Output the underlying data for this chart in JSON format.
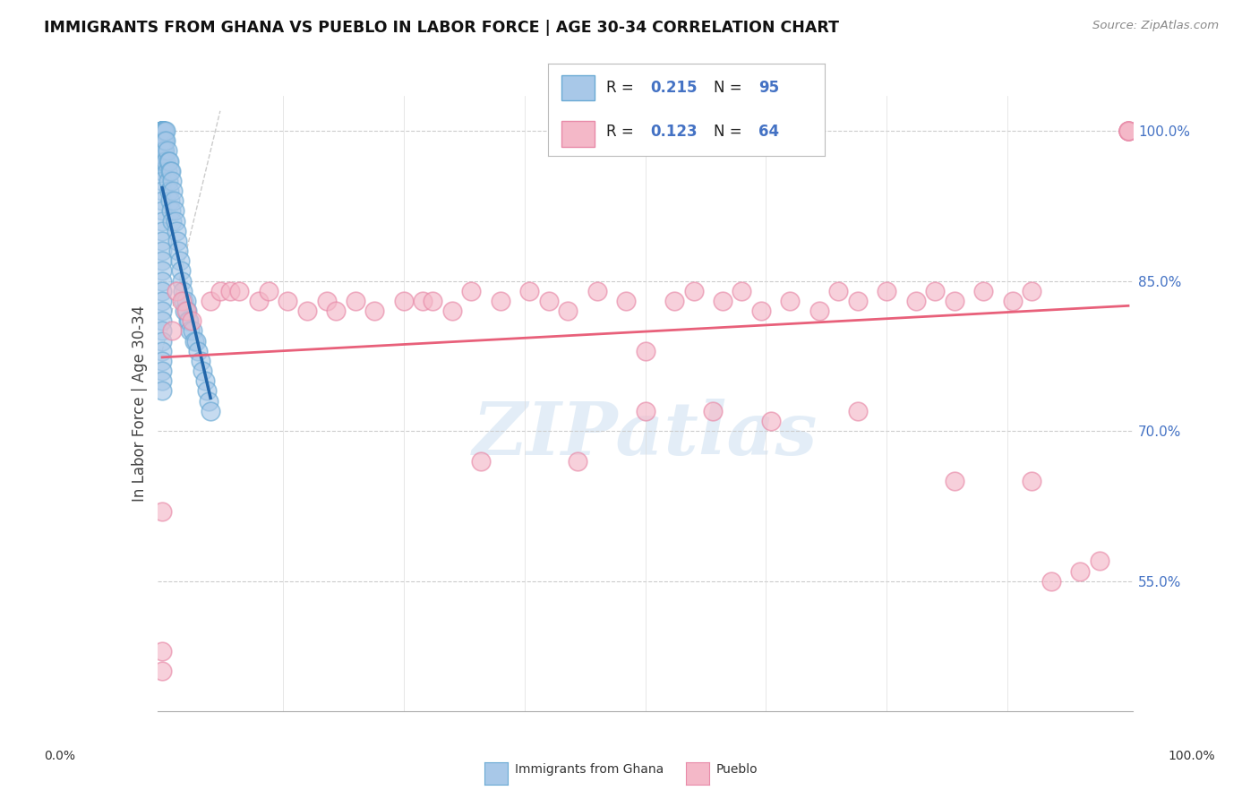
{
  "title": "IMMIGRANTS FROM GHANA VS PUEBLO IN LABOR FORCE | AGE 30-34 CORRELATION CHART",
  "source": "Source: ZipAtlas.com",
  "ylabel": "In Labor Force | Age 30-34",
  "legend_labels": [
    "Immigrants from Ghana",
    "Pueblo"
  ],
  "legend_R": [
    0.215,
    0.123
  ],
  "legend_N": [
    95,
    64
  ],
  "blue_color": "#a8c8e8",
  "blue_edge_color": "#6aaad4",
  "pink_color": "#f4b8c8",
  "pink_edge_color": "#e88aa8",
  "blue_line_color": "#2266aa",
  "pink_line_color": "#e8607a",
  "ref_line_color": "#cccccc",
  "ytick_color": "#4472c4",
  "ytick_labels": [
    "55.0%",
    "70.0%",
    "85.0%",
    "100.0%"
  ],
  "ytick_values": [
    0.55,
    0.7,
    0.85,
    1.0
  ],
  "xlim": [
    -0.005,
    1.005
  ],
  "ylim": [
    0.42,
    1.035
  ],
  "watermark_text": "ZIPatlas",
  "watermark_color": "#c8ddf0",
  "ghana_seed": 1234,
  "pueblo_seed": 5678,
  "ghana_n": 95,
  "pueblo_n": 64,
  "ghana_x_coords": [
    0.0,
    0.0,
    0.0,
    0.0,
    0.0,
    0.0,
    0.0,
    0.0,
    0.0,
    0.0,
    0.0,
    0.0,
    0.0,
    0.0,
    0.0,
    0.0,
    0.0,
    0.0,
    0.0,
    0.0,
    0.0,
    0.0,
    0.0,
    0.0,
    0.0,
    0.0,
    0.0,
    0.0,
    0.0,
    0.0,
    0.0,
    0.0,
    0.0,
    0.0,
    0.0,
    0.0,
    0.0,
    0.0,
    0.0,
    0.0,
    0.001,
    0.001,
    0.001,
    0.001,
    0.001,
    0.002,
    0.002,
    0.002,
    0.002,
    0.003,
    0.003,
    0.003,
    0.004,
    0.004,
    0.004,
    0.005,
    0.005,
    0.006,
    0.006,
    0.007,
    0.007,
    0.008,
    0.008,
    0.009,
    0.009,
    0.01,
    0.01,
    0.011,
    0.012,
    0.013,
    0.014,
    0.015,
    0.016,
    0.017,
    0.018,
    0.019,
    0.02,
    0.021,
    0.022,
    0.023,
    0.025,
    0.026,
    0.027,
    0.028,
    0.029,
    0.031,
    0.033,
    0.035,
    0.037,
    0.04,
    0.042,
    0.044,
    0.046,
    0.048,
    0.05
  ],
  "ghana_y_coords": [
    1.0,
    1.0,
    1.0,
    1.0,
    1.0,
    1.0,
    1.0,
    1.0,
    1.0,
    1.0,
    1.0,
    1.0,
    1.0,
    1.0,
    1.0,
    0.98,
    0.97,
    0.96,
    0.95,
    0.94,
    0.93,
    0.92,
    0.91,
    0.9,
    0.89,
    0.88,
    0.87,
    0.86,
    0.85,
    0.84,
    0.83,
    0.82,
    0.81,
    0.8,
    0.79,
    0.78,
    0.77,
    0.76,
    0.75,
    0.74,
    1.0,
    1.0,
    1.0,
    0.99,
    0.98,
    1.0,
    0.99,
    0.98,
    0.97,
    1.0,
    0.99,
    0.98,
    1.0,
    0.99,
    0.97,
    0.98,
    0.96,
    0.97,
    0.95,
    0.97,
    0.94,
    0.96,
    0.93,
    0.96,
    0.92,
    0.95,
    0.91,
    0.94,
    0.93,
    0.92,
    0.91,
    0.9,
    0.89,
    0.88,
    0.87,
    0.86,
    0.85,
    0.84,
    0.83,
    0.82,
    0.83,
    0.82,
    0.81,
    0.81,
    0.8,
    0.8,
    0.79,
    0.79,
    0.78,
    0.77,
    0.76,
    0.75,
    0.74,
    0.73,
    0.72
  ],
  "pueblo_x_coords": [
    0.0,
    0.0,
    0.0,
    0.01,
    0.015,
    0.02,
    0.025,
    0.03,
    0.05,
    0.06,
    0.07,
    0.08,
    0.1,
    0.11,
    0.13,
    0.15,
    0.17,
    0.18,
    0.2,
    0.22,
    0.25,
    0.27,
    0.3,
    0.32,
    0.35,
    0.38,
    0.4,
    0.42,
    0.45,
    0.48,
    0.5,
    0.53,
    0.55,
    0.58,
    0.6,
    0.62,
    0.65,
    0.68,
    0.7,
    0.72,
    0.75,
    0.78,
    0.8,
    0.82,
    0.85,
    0.88,
    0.9,
    0.92,
    0.95,
    0.97,
    1.0,
    1.0,
    1.0,
    1.0,
    1.0,
    0.28,
    0.33,
    0.43,
    0.5,
    0.57,
    0.63,
    0.72,
    0.82,
    0.9
  ],
  "pueblo_y_coords": [
    0.46,
    0.48,
    0.62,
    0.8,
    0.84,
    0.83,
    0.82,
    0.81,
    0.83,
    0.84,
    0.84,
    0.84,
    0.83,
    0.84,
    0.83,
    0.82,
    0.83,
    0.82,
    0.83,
    0.82,
    0.83,
    0.83,
    0.82,
    0.84,
    0.83,
    0.84,
    0.83,
    0.82,
    0.84,
    0.83,
    0.78,
    0.83,
    0.84,
    0.83,
    0.84,
    0.82,
    0.83,
    0.82,
    0.84,
    0.83,
    0.84,
    0.83,
    0.84,
    0.83,
    0.84,
    0.83,
    0.84,
    0.55,
    0.56,
    0.57,
    1.0,
    1.0,
    1.0,
    1.0,
    1.0,
    0.83,
    0.67,
    0.67,
    0.72,
    0.72,
    0.71,
    0.72,
    0.65,
    0.65
  ]
}
